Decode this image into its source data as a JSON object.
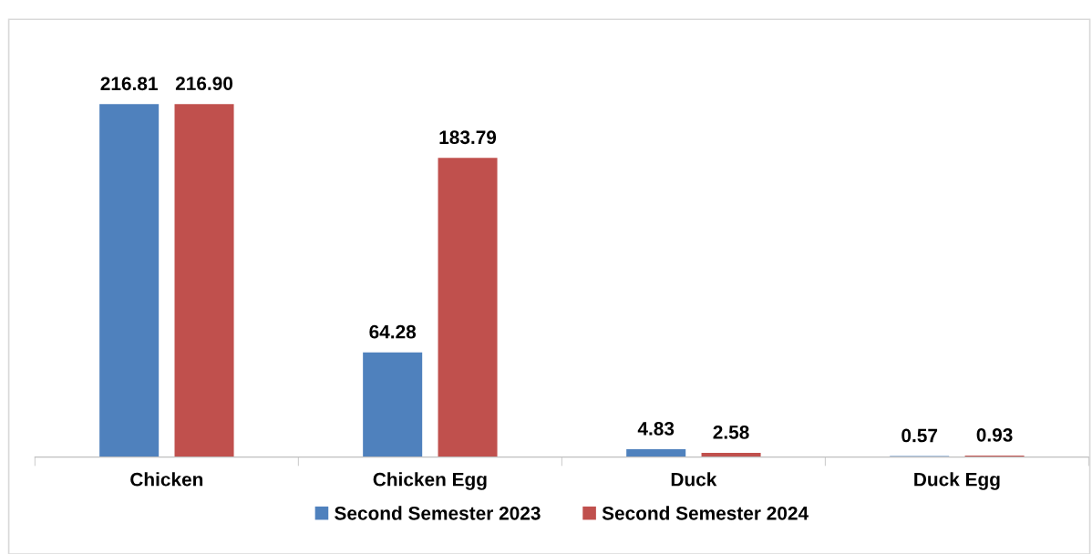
{
  "chart_data": {
    "type": "bar",
    "categories": [
      "Chicken",
      "Chicken Egg",
      "Duck",
      "Duck Egg"
    ],
    "series": [
      {
        "name": "Second Semester 2023",
        "color": "#4f81bd",
        "values": [
          216.81,
          64.28,
          4.83,
          0.57
        ],
        "value_labels": [
          "216.81",
          "64.28",
          "4.83",
          "0.57"
        ]
      },
      {
        "name": "Second Semester 2024",
        "color": "#c0504d",
        "values": [
          216.9,
          183.79,
          2.58,
          0.93
        ],
        "value_labels": [
          "216.90",
          "183.79",
          "2.58",
          "0.93"
        ]
      }
    ],
    "legend": "bottom",
    "grid": false,
    "tick_labels": "x"
  }
}
